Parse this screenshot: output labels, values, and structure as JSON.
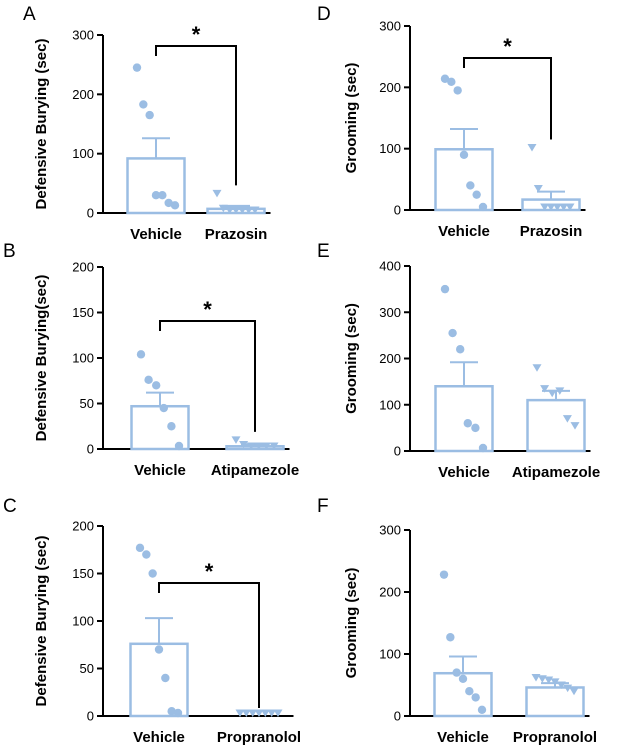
{
  "figure": {
    "title": ""
  },
  "colors": {
    "bar": "#9bbde3",
    "bar_fill": "#ffffff",
    "axis": "#000000",
    "sig": "#000000"
  },
  "chart_data": [
    {
      "panel": "A",
      "type": "bar",
      "ylabel": "Defensive Burying (sec)",
      "ylim": [
        0,
        300
      ],
      "yticks": [
        0,
        100,
        200,
        300
      ],
      "categories": [
        "Vehicle",
        "Prazosin"
      ],
      "means": [
        92,
        7
      ],
      "sem": [
        34,
        5
      ],
      "markers": [
        "circle",
        "triangle"
      ],
      "points": [
        [
          245,
          183,
          165,
          30,
          30,
          17,
          13
        ],
        [
          33,
          8,
          3,
          2,
          2,
          0,
          0
        ]
      ],
      "significance": {
        "label": "*",
        "between": [
          0,
          1
        ]
      }
    },
    {
      "panel": "B",
      "type": "bar",
      "ylabel": "Defensive Burying(sec)",
      "ylim": [
        0,
        200
      ],
      "yticks": [
        0,
        50,
        100,
        150,
        200
      ],
      "categories": [
        "Vehicle",
        "Atipamezole"
      ],
      "means": [
        47,
        3
      ],
      "sem": [
        15,
        2
      ],
      "markers": [
        "circle",
        "triangle"
      ],
      "points": [
        [
          104,
          76,
          70,
          45,
          25,
          0
        ],
        [
          10,
          5,
          3,
          2,
          2,
          1
        ]
      ],
      "significance": {
        "label": "*",
        "between": [
          0,
          1
        ]
      }
    },
    {
      "panel": "C",
      "type": "bar",
      "ylabel": "Defensive Burying (sec)",
      "ylim": [
        0,
        200
      ],
      "yticks": [
        0,
        50,
        100,
        150,
        200
      ],
      "categories": [
        "Vehicle",
        "Propranolol"
      ],
      "means": [
        76,
        0
      ],
      "sem": [
        27,
        0
      ],
      "markers": [
        "circle",
        "triangle"
      ],
      "points": [
        [
          177,
          170,
          150,
          70,
          40,
          5,
          3
        ],
        [
          0,
          0,
          0,
          0,
          0,
          0,
          0
        ]
      ],
      "significance": {
        "label": "*",
        "between": [
          0,
          1
        ]
      }
    },
    {
      "panel": "D",
      "type": "bar",
      "ylabel": "Grooming (sec)",
      "ylim": [
        0,
        300
      ],
      "yticks": [
        0,
        100,
        200,
        300
      ],
      "categories": [
        "Vehicle",
        "Prazosin"
      ],
      "means": [
        99,
        17
      ],
      "sem": [
        33,
        13
      ],
      "markers": [
        "circle",
        "triangle"
      ],
      "points": [
        [
          214,
          209,
          195,
          90,
          40,
          25,
          5
        ],
        [
          102,
          35,
          2,
          2,
          0,
          0,
          0
        ]
      ],
      "significance": {
        "label": "*",
        "between": [
          0,
          1
        ]
      }
    },
    {
      "panel": "E",
      "type": "bar",
      "ylabel": "Grooming (sec)",
      "ylim": [
        0,
        400
      ],
      "yticks": [
        0,
        100,
        200,
        300,
        400
      ],
      "categories": [
        "Vehicle",
        "Atipamezole"
      ],
      "means": [
        140,
        110
      ],
      "sem": [
        52,
        20
      ],
      "markers": [
        "circle",
        "triangle"
      ],
      "points": [
        [
          350,
          255,
          220,
          60,
          50,
          0
        ],
        [
          180,
          135,
          125,
          130,
          70,
          55
        ]
      ],
      "significance": null
    },
    {
      "panel": "F",
      "type": "bar",
      "ylabel": "Grooming (sec)",
      "ylim": [
        0,
        300
      ],
      "yticks": [
        0,
        100,
        200,
        300
      ],
      "categories": [
        "Vehicle",
        "Propranolol"
      ],
      "means": [
        69,
        46
      ],
      "sem": [
        27,
        7
      ],
      "markers": [
        "circle",
        "triangle"
      ],
      "points": [
        [
          228,
          127,
          70,
          60,
          40,
          30,
          10
        ],
        [
          62,
          60,
          58,
          55,
          50,
          45,
          40
        ]
      ],
      "significance": null
    }
  ]
}
